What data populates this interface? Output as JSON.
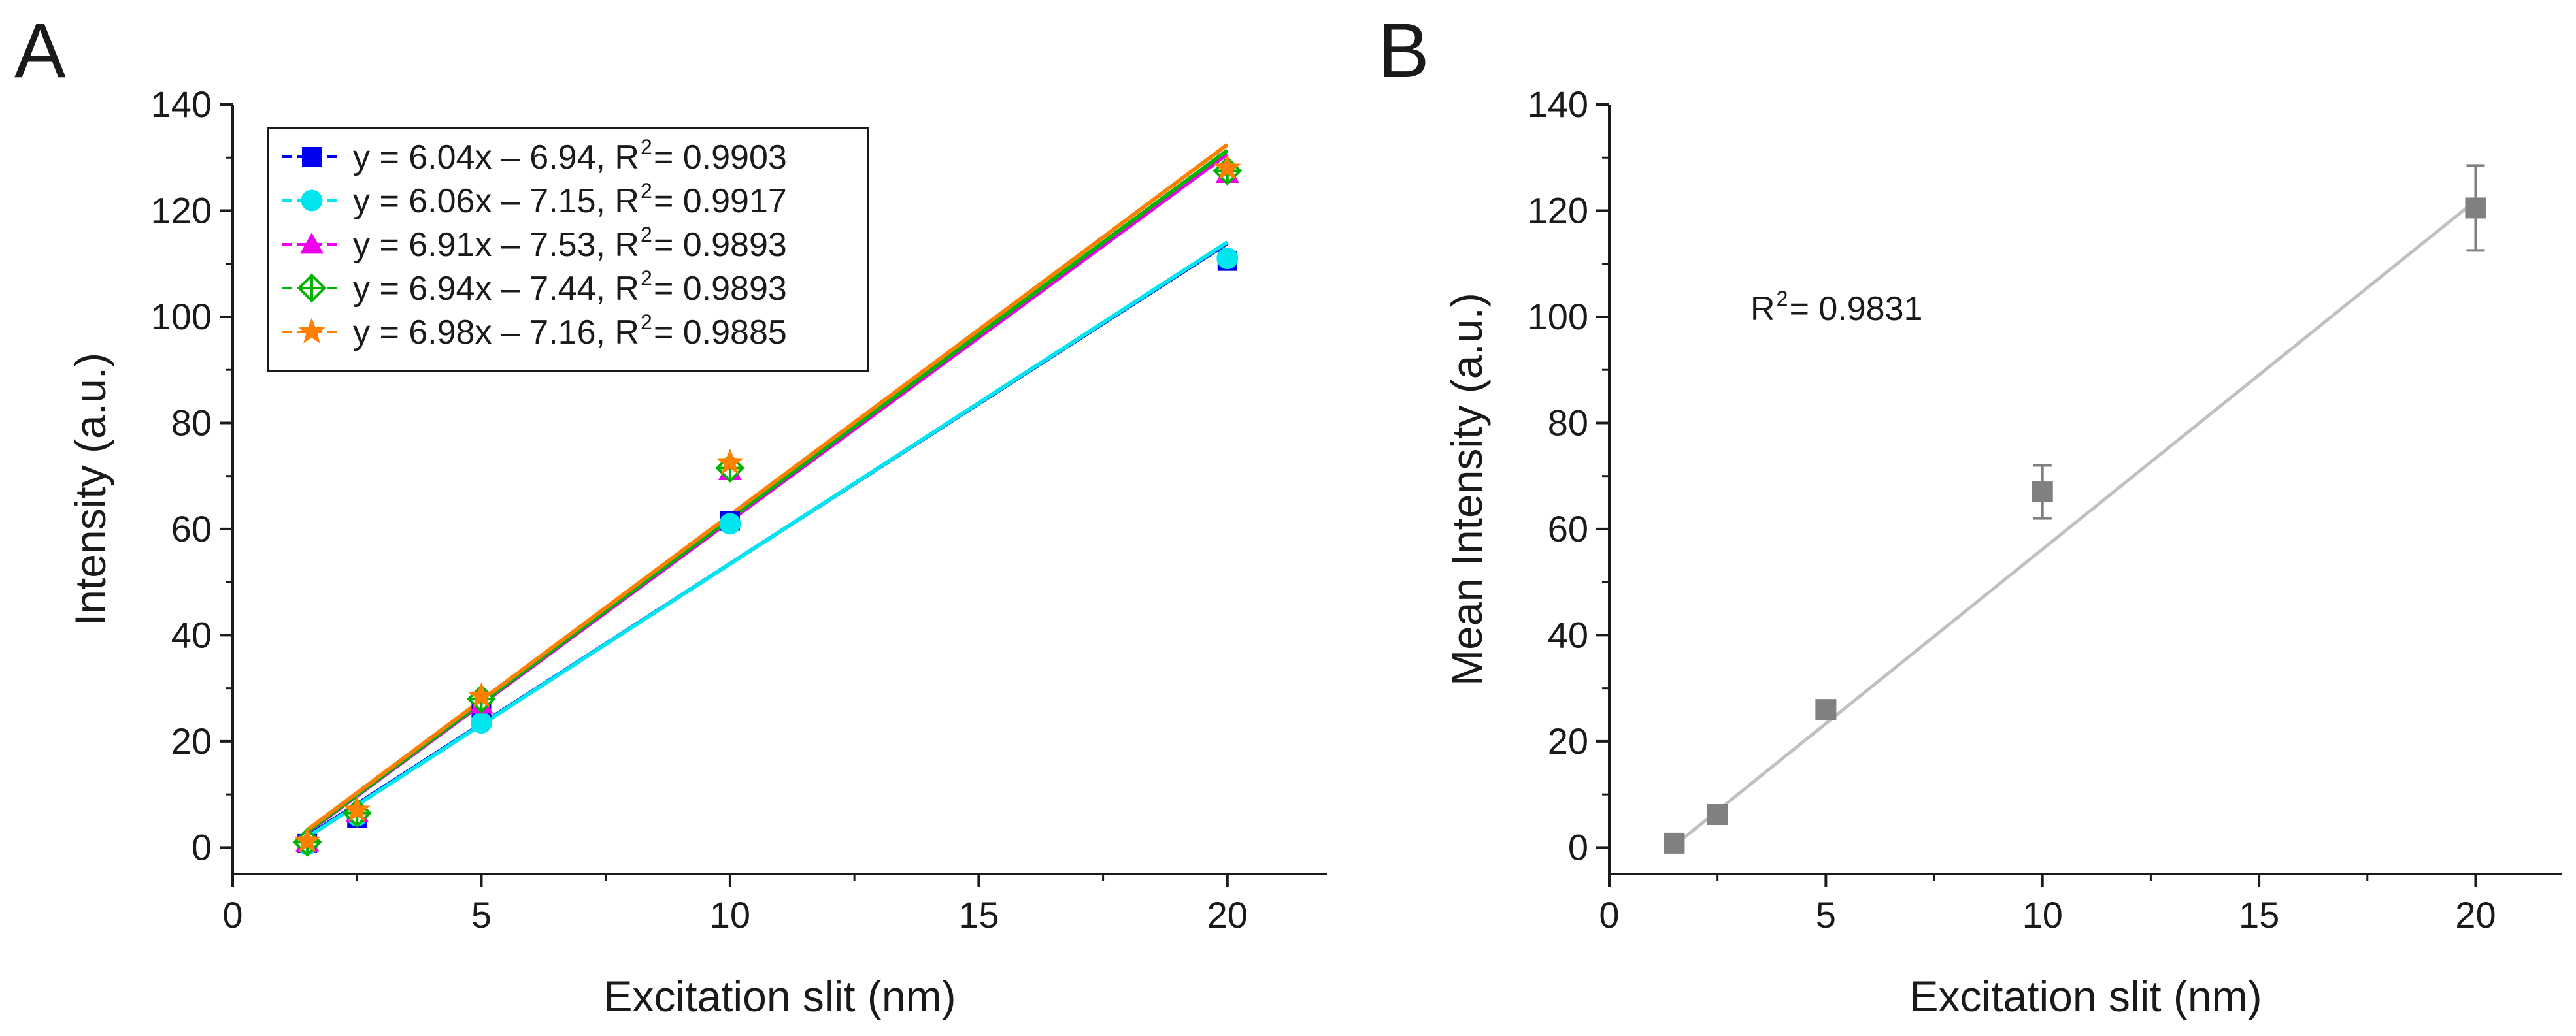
{
  "chart_data": [
    {
      "panel": "A",
      "type": "scatter",
      "xlabel": "Excitation slit (nm)",
      "ylabel": "Intensity (a.u.)",
      "xlim": [
        0,
        22
      ],
      "ylim": [
        -5,
        140
      ],
      "xticks": [
        0,
        5,
        10,
        15,
        20
      ],
      "yticks": [
        0,
        20,
        40,
        60,
        80,
        100,
        120,
        140
      ],
      "grid": false,
      "legend_position": "top-left",
      "x": [
        1.5,
        2.5,
        5,
        10,
        20
      ],
      "series": [
        {
          "name": "y = 6.04x – 6.94, R² = 0.9903",
          "eq": "y = 6.04x – 6.94, R",
          "r2_value": " = 0.9903",
          "color": "#0000ee",
          "marker": "square",
          "slope": 6.04,
          "intercept": -6.94,
          "values": [
            0.8,
            5.5,
            26,
            61.5,
            110.5
          ]
        },
        {
          "name": "y = 6.06x – 7.15, R² = 0.9917",
          "eq": "y = 6.06x – 7.15, R",
          "r2_value": " = 0.9917",
          "color": "#00e5ee",
          "marker": "circle",
          "slope": 6.06,
          "intercept": -7.15,
          "values": [
            0.6,
            6,
            23.5,
            61,
            111
          ]
        },
        {
          "name": "y = 6.91x – 7.53, R² = 0.9893",
          "eq": "y = 6.91x – 7.53, R",
          "r2_value": " = 0.9893",
          "color": "#ee00ee",
          "marker": "triangle",
          "slope": 6.91,
          "intercept": -7.53,
          "values": [
            1,
            6.5,
            27,
            71,
            127
          ]
        },
        {
          "name": "y = 6.94x – 7.44, R² = 0.9893",
          "eq": "y = 6.94x – 7.44, R",
          "r2_value": " = 0.9893",
          "color": "#00b400",
          "marker": "crossed-diamond",
          "slope": 6.94,
          "intercept": -7.44,
          "values": [
            1,
            6.5,
            28,
            71.5,
            127.5
          ]
        },
        {
          "name": "y = 6.98x – 7.16, R² = 0.9885",
          "eq": "y = 6.98x – 7.16, R",
          "r2_value": " = 0.9885",
          "color": "#ff8000",
          "marker": "star",
          "slope": 6.98,
          "intercept": -7.16,
          "values": [
            1.2,
            7,
            28.5,
            72.5,
            128
          ]
        }
      ]
    },
    {
      "panel": "B",
      "type": "scatter",
      "xlabel": "Excitation slit (nm)",
      "ylabel": "Mean Intensity (a.u.)",
      "xlim": [
        0,
        22
      ],
      "ylim": [
        -5,
        140
      ],
      "xticks": [
        0,
        5,
        10,
        15,
        20
      ],
      "yticks": [
        0,
        20,
        40,
        60,
        80,
        100,
        120,
        140
      ],
      "grid": false,
      "annotation": {
        "r_label": "R",
        "sup": "2",
        "value": " = 0.9831"
      },
      "x": [
        1.5,
        2.5,
        5,
        10,
        20
      ],
      "series": [
        {
          "name": "Mean",
          "color": "#808080",
          "marker": "square",
          "values": [
            0.8,
            6.2,
            26,
            67,
            120.5
          ],
          "errors": [
            0,
            0,
            1.5,
            5,
            8
          ],
          "fit_slope": 6.57,
          "fit_intercept": -9.5
        }
      ]
    }
  ]
}
